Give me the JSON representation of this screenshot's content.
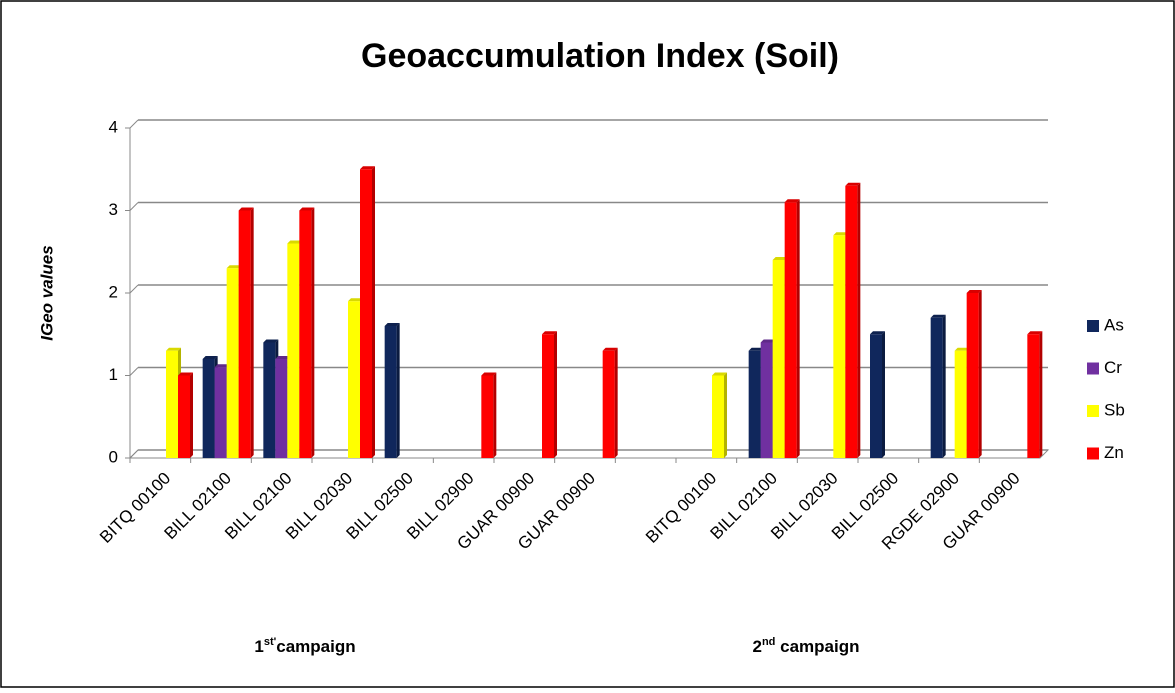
{
  "chart_data": {
    "type": "bar",
    "title": "Geoaccumulation Index (Soil)",
    "y_label": "IGeo values",
    "categories": [
      "BITQ 00100",
      "BILL 02100",
      "BILL 02100",
      "BILL 02030",
      "BILL 02500",
      "BILL 02900",
      "GUAR 00900",
      "GUAR 00900",
      null,
      "BITQ 00100",
      "BILL 02100",
      "BILL 02030",
      "BILL 02500",
      "RGDE 02900",
      "GUAR 00900"
    ],
    "series": [
      {
        "name": "As",
        "color": "#10275c",
        "values": [
          null,
          1.2,
          1.4,
          null,
          1.6,
          null,
          null,
          null,
          null,
          null,
          1.3,
          null,
          1.5,
          1.7,
          null
        ]
      },
      {
        "name": "Cr",
        "color": "#7030a0",
        "values": [
          null,
          1.1,
          1.2,
          null,
          null,
          null,
          null,
          null,
          null,
          null,
          1.4,
          null,
          null,
          null,
          null
        ]
      },
      {
        "name": "Sb",
        "color": "#ffff00",
        "values": [
          1.3,
          2.3,
          2.6,
          1.9,
          null,
          null,
          null,
          null,
          null,
          1.0,
          2.4,
          2.7,
          null,
          1.3,
          null
        ]
      },
      {
        "name": "Zn",
        "color": "#ff0000",
        "values": [
          1.0,
          3.0,
          3.0,
          3.5,
          null,
          1.0,
          1.5,
          1.3,
          null,
          null,
          3.1,
          3.3,
          null,
          2.0,
          1.5
        ]
      }
    ],
    "groups": [
      {
        "num": "1",
        "sup": "st'",
        "text": "campaign"
      },
      {
        "num": "2",
        "sup": "nd",
        "text": " campaign"
      }
    ],
    "ylim": [
      0,
      4
    ],
    "yticks": [
      0,
      1,
      2,
      3,
      4
    ],
    "grid": true,
    "legend": "right"
  }
}
